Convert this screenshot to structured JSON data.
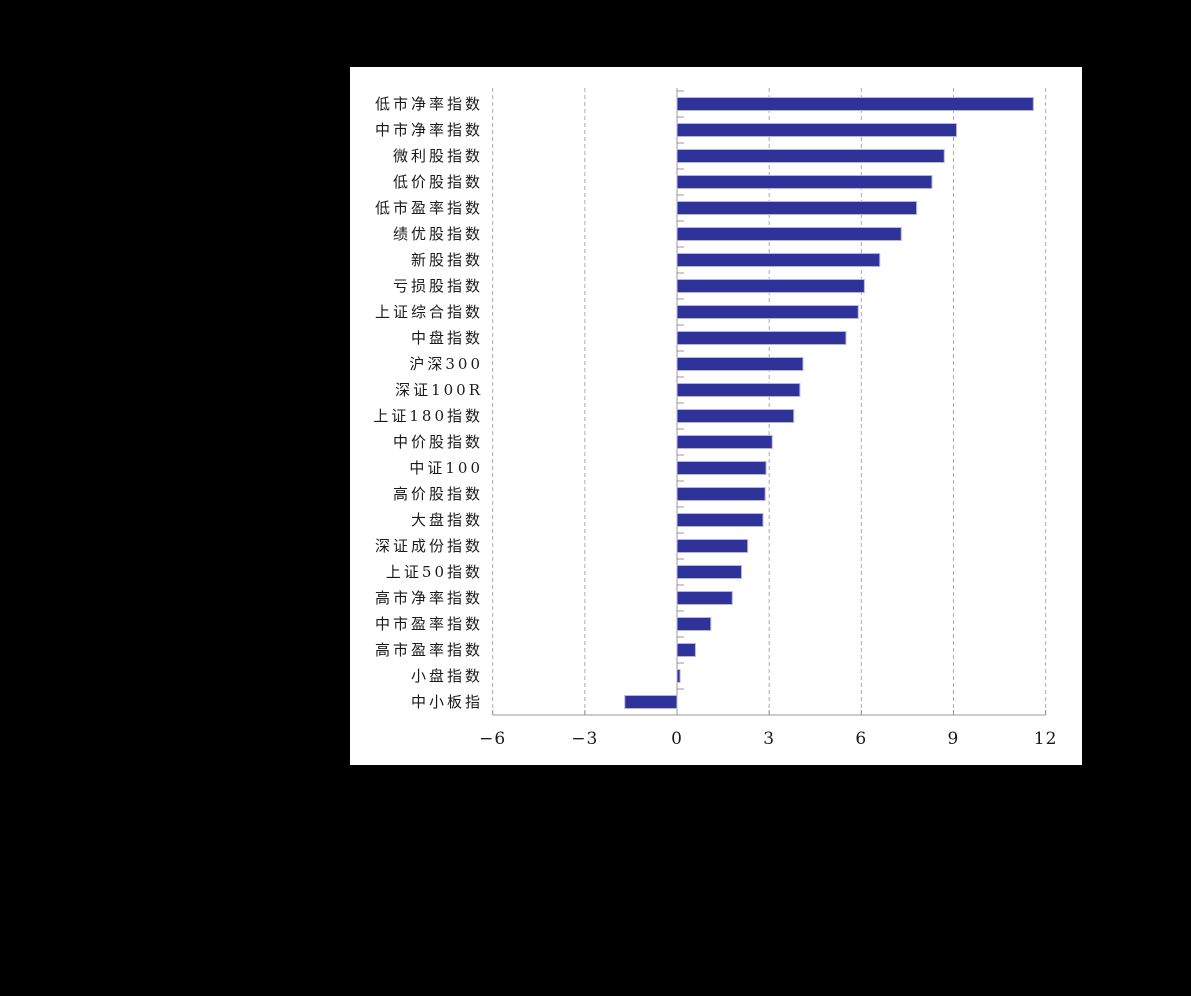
{
  "chart_data": {
    "type": "bar",
    "orientation": "horizontal",
    "title": "",
    "xlabel": "",
    "ylabel": "",
    "categories": [
      "低市净率指数",
      "中市净率指数",
      "微利股指数",
      "低价股指数",
      "低市盈率指数",
      "绩优股指数",
      "新股指数",
      "亏损股指数",
      "上证综合指数",
      "中盘指数",
      "沪深300",
      "深证100R",
      "上证180指数",
      "中价股指数",
      "中证100",
      "高价股指数",
      "大盘指数",
      "深证成份指数",
      "上证50指数",
      "高市净率指数",
      "中市盈率指数",
      "高市盈率指数",
      "小盘指数",
      "中小板指"
    ],
    "values": [
      11.6,
      9.1,
      8.7,
      8.3,
      7.8,
      7.3,
      6.6,
      6.1,
      5.9,
      5.5,
      4.1,
      4.0,
      3.8,
      3.1,
      2.9,
      2.87,
      2.8,
      2.3,
      2.1,
      1.8,
      1.1,
      0.6,
      0.1,
      -1.7
    ],
    "xlim": [
      -6,
      12
    ],
    "x_ticks": [
      -6,
      -3,
      0,
      3,
      6,
      9,
      12
    ],
    "x_tick_labels": [
      "−6",
      "−3",
      "0",
      "3",
      "6",
      "9",
      "12"
    ],
    "grid": "vertical-dashed",
    "legend": "none",
    "colors": {
      "bar_fill": "#2f3399",
      "bar_border": "#b5b6de",
      "axis": "#999999",
      "gridline": "#ababab",
      "text": "#1a1a1a",
      "panel_bg": "#ffffff",
      "page_bg": "#000000"
    }
  }
}
